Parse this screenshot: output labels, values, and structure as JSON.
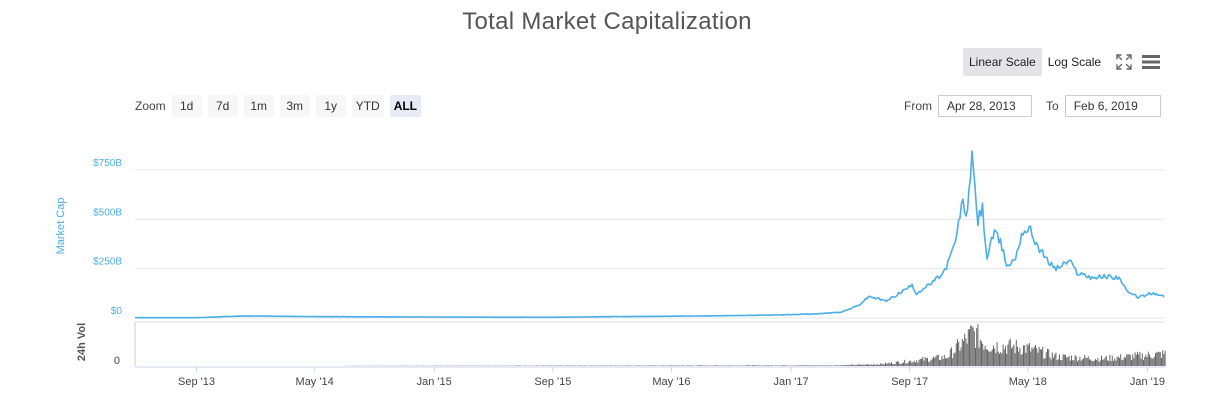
{
  "title": "Total Market Capitalization",
  "scale": {
    "linear_label": "Linear Scale",
    "log_label": "Log Scale",
    "active": "linear"
  },
  "icons": {
    "fullscreen": "fullscreen-icon",
    "menu": "hamburger-menu-icon"
  },
  "zoom": {
    "label": "Zoom",
    "buttons": [
      "1d",
      "7d",
      "1m",
      "3m",
      "1y",
      "YTD",
      "ALL"
    ],
    "active": "ALL"
  },
  "range": {
    "from_label": "From",
    "from_value": "Apr 28, 2013",
    "to_label": "To",
    "to_value": "Feb 6, 2019"
  },
  "colors": {
    "market_cap_line": "#4aaee8",
    "volume_bars": "#666666",
    "grid": "#e6e6e6"
  },
  "chart_data": {
    "type": "line",
    "title": "Total Market Capitalization",
    "ylabel": "Market Cap",
    "volume_ylabel": "24h Vol",
    "y_ticks": [
      "$0",
      "$250B",
      "$500B",
      "$750B"
    ],
    "y_tick_values": [
      0,
      250,
      500,
      750
    ],
    "y_unit": "billion USD",
    "ylim": [
      0,
      800
    ],
    "volume_y_ticks": [
      "0"
    ],
    "x_ticks": [
      "Sep '13",
      "May '14",
      "Jan '15",
      "Sep '15",
      "May '16",
      "Jan '17",
      "Sep '17",
      "May '18",
      "Jan '19"
    ],
    "x_tick_dates": [
      "2013-09-01",
      "2014-05-01",
      "2015-01-01",
      "2015-09-01",
      "2016-05-01",
      "2017-01-01",
      "2017-09-01",
      "2018-05-01",
      "2019-01-01"
    ],
    "xlim": [
      "2013-04-28",
      "2019-02-06"
    ],
    "series": [
      {
        "values_x": [
          "2013-04-28",
          "2013-09-01",
          "2013-12-01",
          "2014-01-01",
          "2014-05-01",
          "2014-09-01",
          "2015-01-01",
          "2015-05-01",
          "2015-09-01",
          "2016-01-01",
          "2016-05-01",
          "2016-09-01",
          "2017-01-01",
          "2017-03-01",
          "2017-04-15",
          "2017-05-20",
          "2017-06-10",
          "2017-07-15",
          "2017-08-20",
          "2017-09-05",
          "2017-09-15",
          "2017-10-15",
          "2017-11-10",
          "2017-11-25",
          "2017-12-07",
          "2017-12-17",
          "2017-12-24",
          "2017-12-30",
          "2018-01-07",
          "2018-01-12",
          "2018-01-17",
          "2018-01-28",
          "2018-02-06",
          "2018-02-20",
          "2018-03-05",
          "2018-03-20",
          "2018-04-05",
          "2018-04-20",
          "2018-05-05",
          "2018-05-20",
          "2018-06-10",
          "2018-06-28",
          "2018-07-25",
          "2018-08-10",
          "2018-09-10",
          "2018-10-10",
          "2018-11-05",
          "2018-11-20",
          "2018-12-15",
          "2019-01-08",
          "2019-01-25",
          "2019-02-06"
        ],
        "values": [
          1.5,
          1.5,
          10,
          10,
          7,
          6,
          5,
          4,
          3.5,
          7,
          9,
          12,
          17,
          22,
          30,
          65,
          110,
          85,
          140,
          165,
          125,
          175,
          230,
          320,
          420,
          600,
          520,
          590,
          810,
          700,
          480,
          560,
          300,
          430,
          390,
          260,
          300,
          440,
          450,
          370,
          290,
          250,
          290,
          230,
          205,
          210,
          205,
          130,
          105,
          125,
          115,
          110
        ]
      }
    ],
    "volume": {
      "unit": "billion USD",
      "dates": [
        "2013-04-28",
        "2017-04-01",
        "2017-07-01",
        "2017-09-01",
        "2017-11-15",
        "2017-12-20",
        "2018-01-07",
        "2018-02-06",
        "2018-04-25",
        "2018-07-01",
        "2018-10-01",
        "2019-02-06"
      ],
      "values": [
        0,
        1,
        3,
        8,
        15,
        40,
        55,
        35,
        30,
        15,
        12,
        20
      ]
    }
  }
}
